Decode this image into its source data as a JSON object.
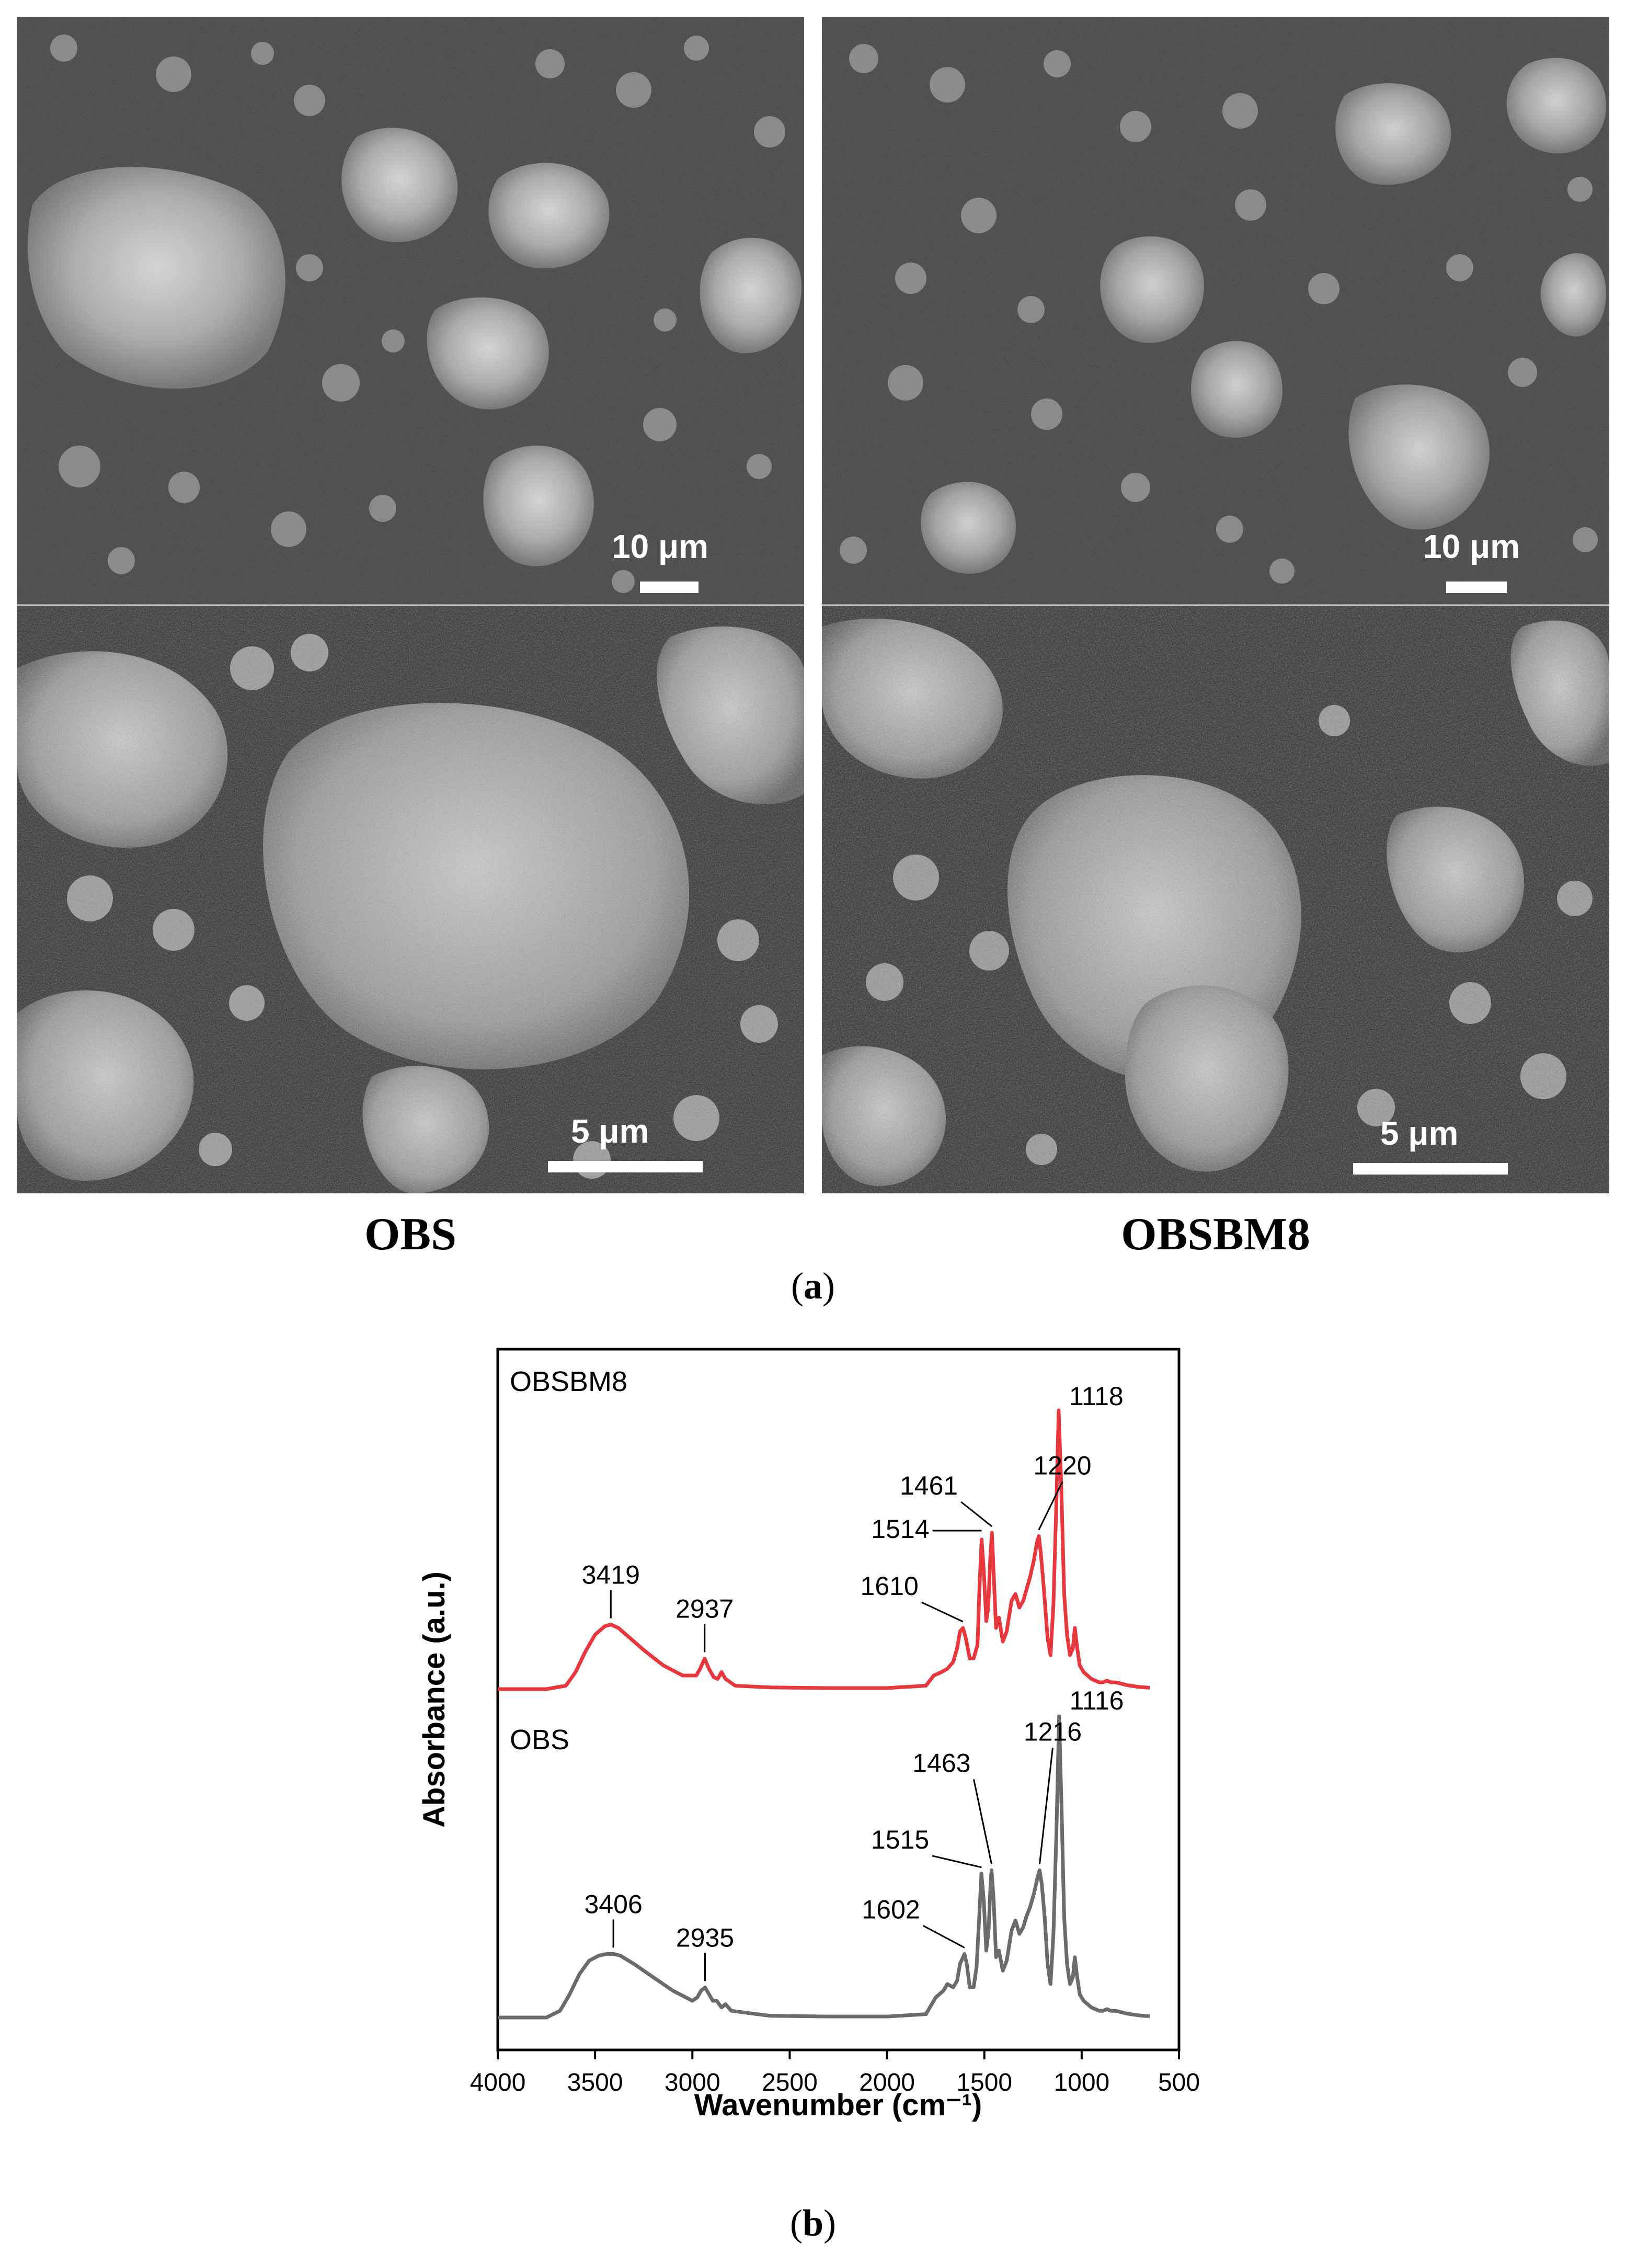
{
  "figure_a": {
    "caption_prefix": "(",
    "caption_letter": "a",
    "caption_suffix": ")",
    "panels": [
      {
        "sample": "OBS",
        "top_scale": "10 μm",
        "bottom_scale": "5 μm"
      },
      {
        "sample": "OBSBM8",
        "top_scale": "10 μm",
        "bottom_scale": "5 μm"
      }
    ]
  },
  "figure_b": {
    "caption_prefix": "(",
    "caption_letter": "b",
    "caption_suffix": ")"
  },
  "chart_data": {
    "type": "line",
    "xlabel": "Wavenumber (cm⁻¹)",
    "ylabel": "Absorbance (a.u.)",
    "xlim": [
      4000,
      500
    ],
    "xticks": [
      4000,
      3500,
      3000,
      2500,
      2000,
      1500,
      1000,
      500
    ],
    "y_ticks_shown": false,
    "legend": "none",
    "colors": {
      "OBSBM8": "#e8373d",
      "OBS": "#6b6b6b"
    },
    "series": [
      {
        "name": "OBSBM8",
        "x": [
          4000,
          3750,
          3650,
          3600,
          3550,
          3500,
          3450,
          3419,
          3380,
          3330,
          3250,
          3150,
          3050,
          2980,
          2960,
          2937,
          2915,
          2890,
          2870,
          2850,
          2830,
          2780,
          2600,
          2300,
          2000,
          1800,
          1760,
          1720,
          1690,
          1660,
          1640,
          1625,
          1610,
          1595,
          1575,
          1555,
          1535,
          1525,
          1514,
          1503,
          1490,
          1480,
          1470,
          1461,
          1452,
          1440,
          1425,
          1405,
          1385,
          1360,
          1340,
          1320,
          1300,
          1285,
          1265,
          1245,
          1230,
          1220,
          1210,
          1195,
          1175,
          1160,
          1145,
          1130,
          1118,
          1105,
          1090,
          1075,
          1060,
          1045,
          1035,
          1025,
          1010,
          990,
          970,
          950,
          930,
          910,
          890,
          870,
          850,
          830,
          810,
          790,
          770,
          750,
          700,
          650
        ],
        "y": [
          0.0,
          0.0,
          0.01,
          0.05,
          0.11,
          0.16,
          0.185,
          0.19,
          0.18,
          0.155,
          0.115,
          0.07,
          0.04,
          0.04,
          0.06,
          0.09,
          0.06,
          0.035,
          0.03,
          0.05,
          0.03,
          0.01,
          0.005,
          0.003,
          0.003,
          0.01,
          0.04,
          0.05,
          0.06,
          0.08,
          0.12,
          0.17,
          0.18,
          0.15,
          0.09,
          0.09,
          0.13,
          0.3,
          0.44,
          0.35,
          0.2,
          0.24,
          0.38,
          0.46,
          0.34,
          0.18,
          0.21,
          0.14,
          0.17,
          0.26,
          0.28,
          0.24,
          0.26,
          0.29,
          0.33,
          0.38,
          0.43,
          0.45,
          0.4,
          0.3,
          0.15,
          0.1,
          0.25,
          0.55,
          0.82,
          0.6,
          0.28,
          0.16,
          0.1,
          0.12,
          0.18,
          0.13,
          0.07,
          0.05,
          0.04,
          0.03,
          0.025,
          0.02,
          0.02,
          0.025,
          0.02,
          0.02,
          0.018,
          0.015,
          0.012,
          0.01,
          0.006,
          0.004
        ]
      },
      {
        "name": "OBS",
        "x": [
          4000,
          3750,
          3680,
          3630,
          3580,
          3530,
          3480,
          3440,
          3406,
          3370,
          3300,
          3200,
          3100,
          3000,
          2975,
          2955,
          2935,
          2915,
          2895,
          2875,
          2850,
          2830,
          2800,
          2600,
          2300,
          2000,
          1800,
          1750,
          1710,
          1690,
          1660,
          1640,
          1625,
          1602,
          1590,
          1575,
          1555,
          1540,
          1528,
          1515,
          1503,
          1490,
          1478,
          1468,
          1463,
          1452,
          1440,
          1425,
          1405,
          1385,
          1360,
          1340,
          1320,
          1300,
          1285,
          1265,
          1245,
          1230,
          1216,
          1205,
          1190,
          1175,
          1160,
          1145,
          1130,
          1116,
          1103,
          1090,
          1075,
          1060,
          1045,
          1035,
          1025,
          1010,
          990,
          970,
          950,
          930,
          910,
          890,
          870,
          850,
          830,
          810,
          790,
          770,
          750,
          700,
          650
        ],
        "y": [
          0.0,
          0.0,
          0.02,
          0.07,
          0.13,
          0.17,
          0.185,
          0.19,
          0.19,
          0.185,
          0.16,
          0.12,
          0.08,
          0.05,
          0.06,
          0.08,
          0.09,
          0.07,
          0.05,
          0.05,
          0.03,
          0.04,
          0.02,
          0.005,
          0.003,
          0.003,
          0.01,
          0.06,
          0.08,
          0.1,
          0.09,
          0.11,
          0.16,
          0.19,
          0.16,
          0.09,
          0.09,
          0.15,
          0.28,
          0.43,
          0.35,
          0.2,
          0.26,
          0.4,
          0.44,
          0.35,
          0.18,
          0.2,
          0.14,
          0.17,
          0.26,
          0.29,
          0.25,
          0.27,
          0.3,
          0.33,
          0.37,
          0.41,
          0.44,
          0.4,
          0.3,
          0.16,
          0.1,
          0.25,
          0.55,
          0.9,
          0.62,
          0.3,
          0.16,
          0.1,
          0.12,
          0.18,
          0.13,
          0.07,
          0.05,
          0.04,
          0.03,
          0.025,
          0.02,
          0.02,
          0.025,
          0.02,
          0.02,
          0.018,
          0.015,
          0.012,
          0.01,
          0.006,
          0.004
        ]
      }
    ],
    "annotations": [
      {
        "series": "OBSBM8",
        "text": "3419",
        "x": 3419
      },
      {
        "series": "OBSBM8",
        "text": "2937",
        "x": 2937
      },
      {
        "series": "OBSBM8",
        "text": "1610",
        "x": 1610
      },
      {
        "series": "OBSBM8",
        "text": "1514",
        "x": 1514
      },
      {
        "series": "OBSBM8",
        "text": "1461",
        "x": 1461
      },
      {
        "series": "OBSBM8",
        "text": "1220",
        "x": 1220
      },
      {
        "series": "OBSBM8",
        "text": "1118",
        "x": 1118
      },
      {
        "series": "OBS",
        "text": "3406",
        "x": 3406
      },
      {
        "series": "OBS",
        "text": "2935",
        "x": 2935
      },
      {
        "series": "OBS",
        "text": "1602",
        "x": 1602
      },
      {
        "series": "OBS",
        "text": "1515",
        "x": 1515
      },
      {
        "series": "OBS",
        "text": "1463",
        "x": 1463
      },
      {
        "series": "OBS",
        "text": "1216",
        "x": 1216
      },
      {
        "series": "OBS",
        "text": "1116",
        "x": 1116
      }
    ]
  }
}
